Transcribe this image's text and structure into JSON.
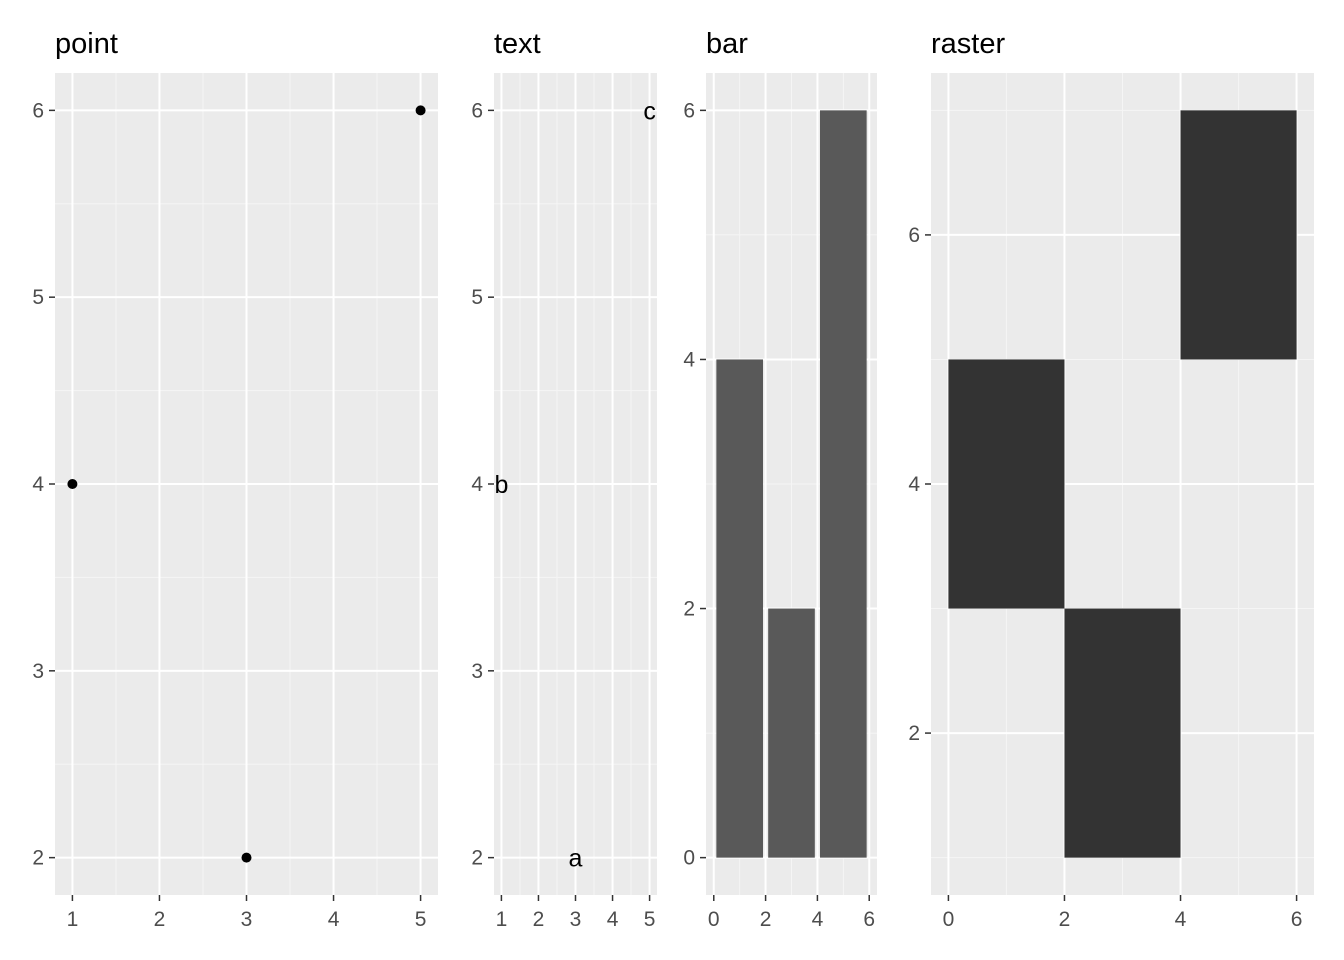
{
  "colors": {
    "panel_background": "#ebebeb",
    "grid_major": "#ffffff",
    "grid_minor": "#f5f5f5",
    "tick": "#333333",
    "tick_label": "#4d4d4d",
    "point": "#000000",
    "bar_fill": "#595959",
    "raster_fill": "#333333"
  },
  "chart_data": [
    {
      "type": "scatter",
      "title": "point",
      "xlabel": "",
      "ylabel": "",
      "xlim": [
        0.8,
        5.2
      ],
      "ylim": [
        1.8,
        6.2
      ],
      "x_ticks": [
        1,
        2,
        3,
        4,
        5
      ],
      "x_tick_labels": [
        "1",
        "2",
        "3",
        "4",
        "5"
      ],
      "y_ticks": [
        2,
        3,
        4,
        5,
        6
      ],
      "y_tick_labels": [
        "2",
        "3",
        "4",
        "5",
        "6"
      ],
      "points": [
        {
          "x": 3,
          "y": 2
        },
        {
          "x": 1,
          "y": 4
        },
        {
          "x": 5,
          "y": 6
        }
      ],
      "grid": true
    },
    {
      "type": "text",
      "title": "text",
      "xlabel": "",
      "ylabel": "",
      "xlim": [
        0.8,
        5.2
      ],
      "ylim": [
        1.8,
        6.2
      ],
      "x_ticks": [
        1,
        2,
        3,
        4,
        5
      ],
      "x_tick_labels": [
        "1",
        "2",
        "3",
        "4",
        "5"
      ],
      "y_ticks": [
        2,
        3,
        4,
        5,
        6
      ],
      "y_tick_labels": [
        "2",
        "3",
        "4",
        "5",
        "6"
      ],
      "labels": [
        {
          "x": 3,
          "y": 2,
          "label": "a"
        },
        {
          "x": 1,
          "y": 4,
          "label": "b"
        },
        {
          "x": 5,
          "y": 6,
          "label": "c"
        }
      ],
      "grid": true
    },
    {
      "type": "bar",
      "title": "bar",
      "xlabel": "",
      "ylabel": "",
      "xlim": [
        -0.3,
        6.3
      ],
      "ylim": [
        -0.3,
        6.3
      ],
      "x_ticks": [
        0,
        2,
        4,
        6
      ],
      "x_tick_labels": [
        "0",
        "2",
        "4",
        "6"
      ],
      "y_ticks": [
        0,
        2,
        4,
        6
      ],
      "y_tick_labels": [
        "0",
        "2",
        "4",
        "6"
      ],
      "bars": [
        {
          "x": 1,
          "y": 4
        },
        {
          "x": 3,
          "y": 2
        },
        {
          "x": 5,
          "y": 6
        }
      ],
      "bar_width": 1.8,
      "grid": true
    },
    {
      "type": "heatmap",
      "title": "raster",
      "xlabel": "",
      "ylabel": "",
      "xlim": [
        -0.3,
        6.3
      ],
      "ylim": [
        0.7,
        7.3
      ],
      "x_ticks": [
        0,
        2,
        4,
        6
      ],
      "x_tick_labels": [
        "0",
        "2",
        "4",
        "6"
      ],
      "y_ticks": [
        2,
        4,
        6
      ],
      "y_tick_labels": [
        "2",
        "4",
        "6"
      ],
      "tiles": [
        {
          "x": 3,
          "y": 2
        },
        {
          "x": 1,
          "y": 4
        },
        {
          "x": 5,
          "y": 6
        }
      ],
      "tile_width": 2,
      "tile_height": 2,
      "grid": true
    }
  ]
}
